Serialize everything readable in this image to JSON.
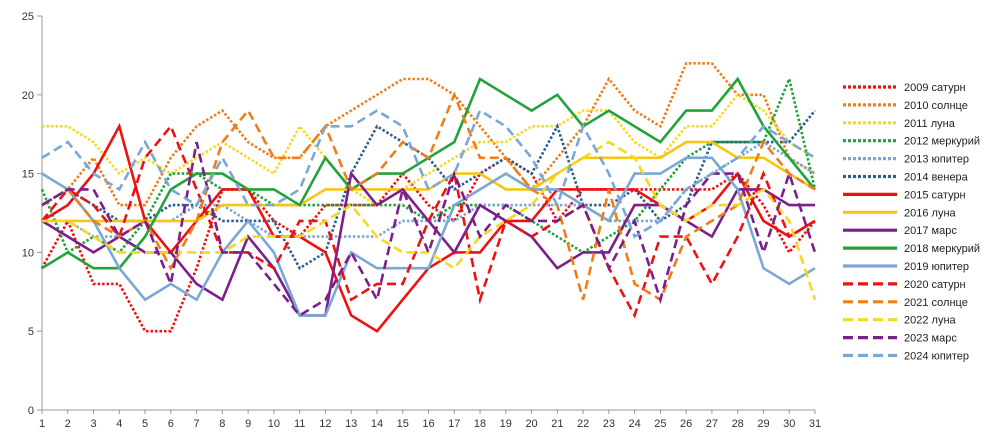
{
  "chart_data": {
    "type": "line",
    "title": "",
    "xlabel": "",
    "ylabel": "",
    "x": [
      1,
      2,
      3,
      4,
      5,
      6,
      7,
      8,
      9,
      10,
      11,
      12,
      13,
      14,
      15,
      16,
      17,
      18,
      19,
      20,
      21,
      22,
      23,
      24,
      25,
      26,
      27,
      28,
      29,
      30,
      31
    ],
    "ylim": [
      0,
      25
    ],
    "yticks": [
      0,
      5,
      10,
      15,
      20,
      25
    ],
    "grid": false,
    "legend_position": "right",
    "series": [
      {
        "name": "2009 сатурн",
        "color": "#ee1111",
        "style": "dotted",
        "values": [
          9,
          12,
          8,
          8,
          5,
          5,
          9,
          14,
          14,
          12,
          11,
          13,
          13,
          13,
          15,
          13,
          12,
          15,
          16,
          15,
          12,
          14,
          14,
          14,
          14,
          14,
          14,
          15,
          13,
          10,
          12
        ]
      },
      {
        "name": "2010 солнце",
        "color": "#f07d1a",
        "style": "dotted",
        "values": [
          13,
          14,
          16,
          13,
          13,
          16,
          18,
          19,
          17,
          16,
          16,
          18,
          19,
          20,
          21,
          21,
          20,
          18,
          16,
          14,
          16,
          18,
          21,
          19,
          18,
          22,
          22,
          20,
          20,
          16,
          15
        ]
      },
      {
        "name": "2011 луна",
        "color": "#f5d91e",
        "style": "dotted",
        "values": [
          18,
          18,
          17,
          15,
          16,
          15,
          16,
          17,
          16,
          15,
          18,
          16,
          14,
          13,
          14,
          15,
          16,
          17,
          17,
          18,
          18,
          19,
          19,
          17,
          16,
          18,
          18,
          20,
          19,
          17,
          16
        ]
      },
      {
        "name": "2012 меркурий",
        "color": "#22a33a",
        "style": "dotted",
        "values": [
          14,
          10,
          11,
          10,
          12,
          15,
          15,
          14,
          14,
          13,
          13,
          13,
          13,
          13,
          13,
          12,
          13,
          13,
          13,
          12,
          11,
          10,
          11,
          12,
          14,
          16,
          17,
          17,
          17,
          21,
          14
        ]
      },
      {
        "name": "2013 юпитер",
        "color": "#7aa8d6",
        "style": "dotted",
        "values": [
          12,
          12,
          11,
          11,
          12,
          12,
          13,
          13,
          12,
          11,
          11,
          11,
          11,
          11,
          12,
          12,
          12,
          13,
          13,
          13,
          13,
          13,
          12,
          12,
          12,
          14,
          15,
          16,
          17,
          16,
          15
        ]
      },
      {
        "name": "2014 венера",
        "color": "#2d5f8e",
        "style": "dotted",
        "values": [
          13,
          14,
          13,
          12,
          12,
          13,
          13,
          12,
          12,
          12,
          9,
          10,
          15,
          18,
          17,
          16,
          14,
          15,
          16,
          15,
          18,
          13,
          13,
          14,
          12,
          13,
          17,
          17,
          17,
          17,
          19
        ]
      },
      {
        "name": "2015 сатурн",
        "color": "#ee1111",
        "style": "solid",
        "values": [
          12,
          13,
          15,
          18,
          12,
          10,
          12,
          14,
          14,
          11,
          11,
          10,
          6,
          5,
          7,
          9,
          10,
          10,
          12,
          12,
          14,
          14,
          14,
          14,
          13,
          12,
          13,
          15,
          12,
          11,
          12
        ]
      },
      {
        "name": "2016 луна",
        "color": "#f5c618",
        "style": "solid",
        "values": [
          12,
          12,
          12,
          12,
          12,
          12,
          12,
          13,
          13,
          13,
          13,
          14,
          14,
          14,
          14,
          14,
          15,
          15,
          14,
          14,
          15,
          16,
          16,
          16,
          16,
          17,
          17,
          16,
          16,
          15,
          14
        ]
      },
      {
        "name": "2017 марс",
        "color": "#7b1f8c",
        "style": "solid",
        "values": [
          12,
          11,
          10,
          11,
          10,
          10,
          8,
          7,
          11,
          9,
          6,
          6,
          15,
          13,
          14,
          12,
          10,
          13,
          12,
          11,
          9,
          10,
          10,
          13,
          13,
          12,
          11,
          14,
          14,
          13,
          13
        ]
      },
      {
        "name": "2018 меркурий",
        "color": "#22a33a",
        "style": "solid",
        "values": [
          9,
          10,
          9,
          9,
          11,
          14,
          15,
          15,
          14,
          14,
          13,
          16,
          14,
          15,
          15,
          16,
          17,
          21,
          20,
          19,
          20,
          18,
          19,
          18,
          17,
          19,
          19,
          21,
          18,
          16,
          14
        ]
      },
      {
        "name": "2019 юпитер",
        "color": "#7aa8d6",
        "style": "solid",
        "values": [
          15,
          14,
          12,
          9,
          7,
          8,
          7,
          10,
          12,
          10,
          6,
          6,
          10,
          9,
          9,
          9,
          13,
          14,
          15,
          14,
          14,
          13,
          12,
          15,
          15,
          16,
          16,
          14,
          9,
          8,
          9
        ]
      },
      {
        "name": "2020 сатурн",
        "color": "#ee1111",
        "style": "dashed",
        "values": [
          12,
          14,
          13,
          11,
          16,
          18,
          14,
          10,
          10,
          9,
          12,
          12,
          7,
          8,
          8,
          12,
          15,
          7,
          12,
          11,
          12,
          13,
          9,
          6,
          11,
          11,
          8,
          11,
          15,
          11,
          12
        ]
      },
      {
        "name": "2021 солнце",
        "color": "#f07d1a",
        "style": "dashed",
        "values": [
          13,
          14,
          12,
          11,
          12,
          9,
          12,
          17,
          19,
          16,
          16,
          18,
          14,
          15,
          17,
          16,
          20,
          16,
          16,
          14,
          13,
          7,
          14,
          8,
          7,
          11,
          12,
          13,
          17,
          15,
          14
        ]
      },
      {
        "name": "2022 луна",
        "color": "#f5d91e",
        "style": "dashed",
        "values": [
          12,
          12,
          11,
          10,
          10,
          10,
          10,
          10,
          11,
          11,
          11,
          12,
          13,
          11,
          10,
          10,
          9,
          11,
          12,
          13,
          15,
          16,
          17,
          16,
          13,
          12,
          13,
          13,
          14,
          12,
          7
        ]
      },
      {
        "name": "2023 марс",
        "color": "#7b1f8c",
        "style": "dashed",
        "values": [
          13,
          14,
          14,
          11,
          12,
          8,
          17,
          10,
          10,
          8,
          6,
          7,
          10,
          7,
          14,
          10,
          15,
          11,
          13,
          12,
          12,
          13,
          9,
          12,
          7,
          13,
          15,
          15,
          10,
          15,
          10
        ]
      },
      {
        "name": "2024 юпитер",
        "color": "#7aa8d6",
        "style": "dashed",
        "values": [
          16,
          17,
          15,
          14,
          17,
          14,
          13,
          16,
          13,
          13,
          14,
          18,
          18,
          19,
          18,
          14,
          15,
          19,
          18,
          16,
          13,
          18,
          15,
          11,
          12,
          14,
          15,
          16,
          18,
          17,
          16
        ]
      }
    ]
  }
}
